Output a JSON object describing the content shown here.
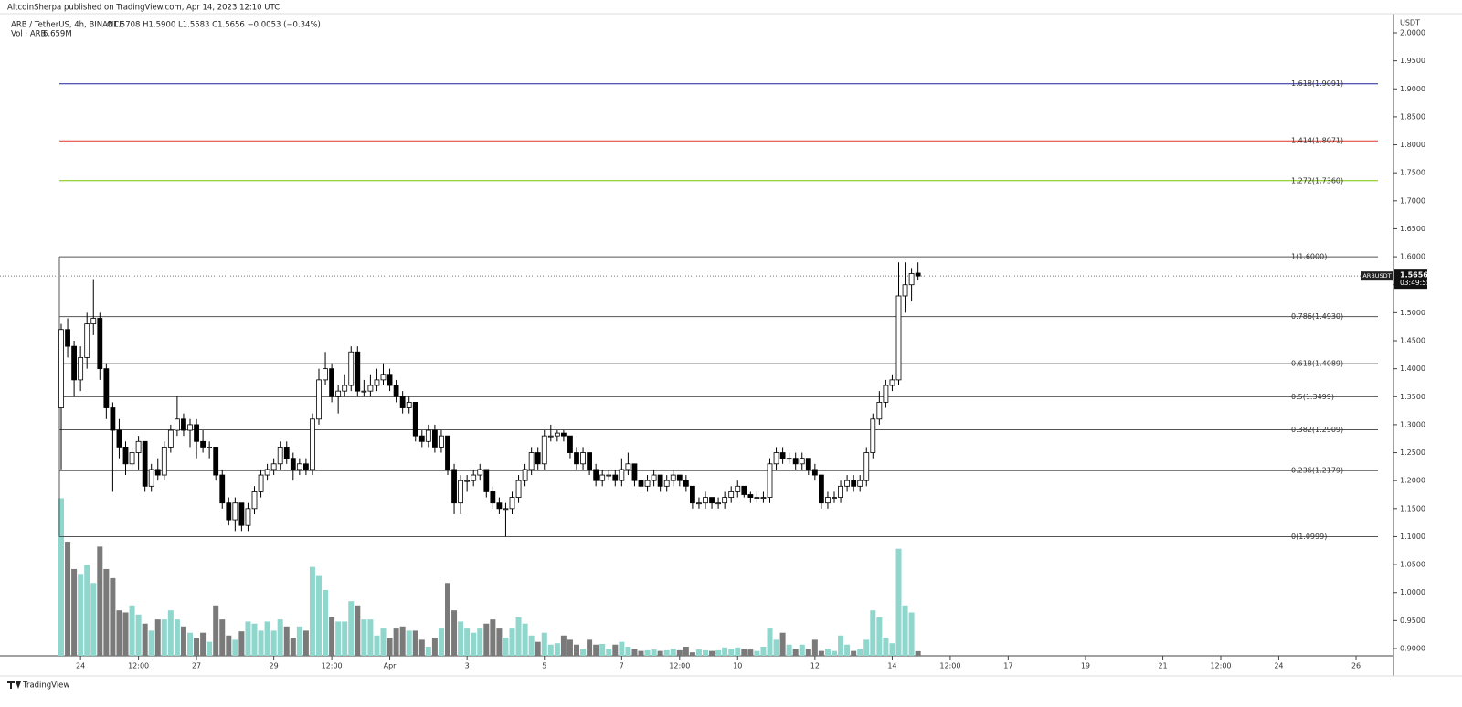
{
  "header": {
    "publisher": "AltcoinSherpa published on TradingView.com, Apr 14, 2023 12:10 UTC",
    "symbol": "ARB / TetherUS, 4h, BINANCE",
    "ohlc": "O1.5708 H1.5900 L1.5583 C1.5656 −0.0053 (−0.34%)",
    "volume_label": "Vol · ARB",
    "volume_value": "6.659M",
    "footer": "TradingView"
  },
  "chart_data": {
    "type": "candlestick",
    "currency": "USDT",
    "ylim": [
      0.9,
      2.0
    ],
    "yticks": [
      {
        "value": 0.9,
        "label": "0.9000"
      },
      {
        "value": 0.95,
        "label": "0.9500"
      },
      {
        "value": 1.0,
        "label": "1.0000"
      },
      {
        "value": 1.05,
        "label": "1.0500"
      },
      {
        "value": 1.1,
        "label": "1.1000"
      },
      {
        "value": 1.15,
        "label": "1.1500"
      },
      {
        "value": 1.2,
        "label": "1.2000"
      },
      {
        "value": 1.25,
        "label": "1.2500"
      },
      {
        "value": 1.3,
        "label": "1.3000"
      },
      {
        "value": 1.35,
        "label": "1.3500"
      },
      {
        "value": 1.4,
        "label": "1.4000"
      },
      {
        "value": 1.45,
        "label": "1.4500"
      },
      {
        "value": 1.5,
        "label": "1.5000"
      },
      {
        "value": 1.55,
        "label": "1.5500"
      },
      {
        "value": 1.6,
        "label": "1.6000"
      },
      {
        "value": 1.65,
        "label": "1.6500"
      },
      {
        "value": 1.7,
        "label": "1.7000"
      },
      {
        "value": 1.75,
        "label": "1.7500"
      },
      {
        "value": 1.8,
        "label": "1.8000"
      },
      {
        "value": 1.85,
        "label": "1.8500"
      },
      {
        "value": 1.9,
        "label": "1.9000"
      },
      {
        "value": 1.95,
        "label": "1.9500"
      },
      {
        "value": 2.0,
        "label": "2.0000"
      }
    ],
    "xticks": [
      {
        "value": 3,
        "label": "24"
      },
      {
        "value": 12,
        "label": "12:00"
      },
      {
        "value": 21,
        "label": "27"
      },
      {
        "value": 33,
        "label": "29"
      },
      {
        "value": 42,
        "label": "12:00"
      },
      {
        "value": 51,
        "label": "Apr"
      },
      {
        "value": 63,
        "label": "3"
      },
      {
        "value": 75,
        "label": "5"
      },
      {
        "value": 87,
        "label": "7"
      },
      {
        "value": 96,
        "label": "12:00"
      },
      {
        "value": 105,
        "label": "10"
      },
      {
        "value": 117,
        "label": "12"
      },
      {
        "value": 129,
        "label": "14"
      },
      {
        "value": 138,
        "label": "12:00"
      },
      {
        "value": 147,
        "label": "17"
      },
      {
        "value": 159,
        "label": "19"
      },
      {
        "value": 171,
        "label": "21"
      },
      {
        "value": 180,
        "label": "12:00"
      },
      {
        "value": 189,
        "label": "24"
      },
      {
        "value": 201,
        "label": "26"
      }
    ],
    "up_color": "#ffffff",
    "down_color": "#000000",
    "up_volume_color": "#8fd6cc",
    "down_volume_color": "#7a7a7a",
    "last_price": {
      "symbol": "ARBUSDT",
      "value": 1.5656,
      "label": "1.5656",
      "countdown": "03:49:55"
    },
    "fib_levels": [
      {
        "value": 1.0999,
        "label": "0(1.0999)",
        "color": "#555555"
      },
      {
        "value": 1.2179,
        "label": "0.236(1.2179)",
        "color": "#555555"
      },
      {
        "value": 1.2909,
        "label": "0.382(1.2909)",
        "color": "#555555"
      },
      {
        "value": 1.3499,
        "label": "0.5(1.3499)",
        "color": "#555555"
      },
      {
        "value": 1.4089,
        "label": "0.618(1.4089)",
        "color": "#555555"
      },
      {
        "value": 1.493,
        "label": "0.786(1.4930)",
        "color": "#555555"
      },
      {
        "value": 1.6,
        "label": "1(1.6000)",
        "color": "#555555"
      },
      {
        "value": 1.736,
        "label": "1.272(1.7360)",
        "color": "#7cc400"
      },
      {
        "value": 1.8071,
        "label": "1.414(1.8071)",
        "color": "#e0362c"
      },
      {
        "value": 1.9091,
        "label": "1.618(1.9091)",
        "color": "#2020a0"
      }
    ],
    "volume_ylim": [
      0,
      300
    ],
    "candles": [
      [
        1.33,
        1.48,
        1.22,
        1.47
      ],
      [
        1.47,
        1.49,
        1.42,
        1.44
      ],
      [
        1.44,
        1.45,
        1.35,
        1.38
      ],
      [
        1.38,
        1.44,
        1.36,
        1.42
      ],
      [
        1.42,
        1.5,
        1.4,
        1.48
      ],
      [
        1.48,
        1.56,
        1.46,
        1.49
      ],
      [
        1.49,
        1.5,
        1.38,
        1.4
      ],
      [
        1.4,
        1.41,
        1.31,
        1.33
      ],
      [
        1.33,
        1.34,
        1.18,
        1.29
      ],
      [
        1.29,
        1.31,
        1.24,
        1.26
      ],
      [
        1.26,
        1.27,
        1.21,
        1.23
      ],
      [
        1.23,
        1.26,
        1.22,
        1.25
      ],
      [
        1.25,
        1.28,
        1.22,
        1.27
      ],
      [
        1.27,
        1.27,
        1.18,
        1.19
      ],
      [
        1.19,
        1.23,
        1.18,
        1.22
      ],
      [
        1.22,
        1.24,
        1.2,
        1.21
      ],
      [
        1.21,
        1.27,
        1.2,
        1.26
      ],
      [
        1.26,
        1.3,
        1.25,
        1.29
      ],
      [
        1.29,
        1.35,
        1.28,
        1.31
      ],
      [
        1.31,
        1.32,
        1.28,
        1.29
      ],
      [
        1.29,
        1.31,
        1.26,
        1.3
      ],
      [
        1.3,
        1.31,
        1.24,
        1.27
      ],
      [
        1.27,
        1.29,
        1.25,
        1.26
      ],
      [
        1.26,
        1.27,
        1.24,
        1.26
      ],
      [
        1.26,
        1.26,
        1.2,
        1.21
      ],
      [
        1.21,
        1.22,
        1.15,
        1.16
      ],
      [
        1.16,
        1.17,
        1.12,
        1.13
      ],
      [
        1.13,
        1.17,
        1.11,
        1.16
      ],
      [
        1.16,
        1.16,
        1.11,
        1.12
      ],
      [
        1.12,
        1.16,
        1.11,
        1.15
      ],
      [
        1.15,
        1.19,
        1.14,
        1.18
      ],
      [
        1.18,
        1.22,
        1.17,
        1.21
      ],
      [
        1.21,
        1.23,
        1.2,
        1.22
      ],
      [
        1.22,
        1.24,
        1.21,
        1.23
      ],
      [
        1.23,
        1.27,
        1.22,
        1.26
      ],
      [
        1.26,
        1.27,
        1.23,
        1.24
      ],
      [
        1.24,
        1.25,
        1.2,
        1.22
      ],
      [
        1.22,
        1.24,
        1.21,
        1.23
      ],
      [
        1.23,
        1.24,
        1.21,
        1.22
      ],
      [
        1.22,
        1.32,
        1.21,
        1.31
      ],
      [
        1.31,
        1.4,
        1.3,
        1.38
      ],
      [
        1.38,
        1.43,
        1.37,
        1.4
      ],
      [
        1.4,
        1.41,
        1.34,
        1.35
      ],
      [
        1.35,
        1.37,
        1.32,
        1.36
      ],
      [
        1.36,
        1.39,
        1.35,
        1.37
      ],
      [
        1.37,
        1.44,
        1.36,
        1.43
      ],
      [
        1.43,
        1.44,
        1.35,
        1.36
      ],
      [
        1.36,
        1.38,
        1.35,
        1.36
      ],
      [
        1.36,
        1.39,
        1.35,
        1.37
      ],
      [
        1.37,
        1.4,
        1.36,
        1.38
      ],
      [
        1.38,
        1.41,
        1.37,
        1.39
      ],
      [
        1.39,
        1.4,
        1.36,
        1.37
      ],
      [
        1.37,
        1.38,
        1.34,
        1.35
      ],
      [
        1.35,
        1.36,
        1.32,
        1.33
      ],
      [
        1.33,
        1.35,
        1.32,
        1.34
      ],
      [
        1.34,
        1.34,
        1.27,
        1.28
      ],
      [
        1.28,
        1.29,
        1.26,
        1.27
      ],
      [
        1.27,
        1.3,
        1.26,
        1.29
      ],
      [
        1.29,
        1.3,
        1.25,
        1.26
      ],
      [
        1.26,
        1.29,
        1.25,
        1.28
      ],
      [
        1.28,
        1.28,
        1.21,
        1.22
      ],
      [
        1.22,
        1.23,
        1.14,
        1.16
      ],
      [
        1.16,
        1.21,
        1.14,
        1.2
      ],
      [
        1.2,
        1.21,
        1.18,
        1.2
      ],
      [
        1.2,
        1.22,
        1.19,
        1.21
      ],
      [
        1.21,
        1.23,
        1.2,
        1.22
      ],
      [
        1.22,
        1.22,
        1.17,
        1.18
      ],
      [
        1.18,
        1.19,
        1.15,
        1.16
      ],
      [
        1.16,
        1.17,
        1.14,
        1.15
      ],
      [
        1.15,
        1.16,
        1.1,
        1.15
      ],
      [
        1.15,
        1.18,
        1.14,
        1.17
      ],
      [
        1.17,
        1.21,
        1.16,
        1.2
      ],
      [
        1.2,
        1.23,
        1.19,
        1.22
      ],
      [
        1.22,
        1.26,
        1.21,
        1.25
      ],
      [
        1.25,
        1.26,
        1.22,
        1.23
      ],
      [
        1.23,
        1.29,
        1.22,
        1.28
      ],
      [
        1.28,
        1.3,
        1.27,
        1.28
      ],
      [
        1.28,
        1.29,
        1.27,
        1.285
      ],
      [
        1.285,
        1.29,
        1.27,
        1.28
      ],
      [
        1.28,
        1.28,
        1.24,
        1.25
      ],
      [
        1.25,
        1.26,
        1.22,
        1.23
      ],
      [
        1.23,
        1.26,
        1.22,
        1.25
      ],
      [
        1.25,
        1.25,
        1.21,
        1.22
      ],
      [
        1.22,
        1.23,
        1.19,
        1.2
      ],
      [
        1.2,
        1.22,
        1.19,
        1.21
      ],
      [
        1.21,
        1.22,
        1.2,
        1.21
      ],
      [
        1.21,
        1.22,
        1.19,
        1.2
      ],
      [
        1.2,
        1.24,
        1.19,
        1.22
      ],
      [
        1.22,
        1.25,
        1.21,
        1.23
      ],
      [
        1.23,
        1.23,
        1.19,
        1.2
      ],
      [
        1.2,
        1.21,
        1.18,
        1.19
      ],
      [
        1.19,
        1.21,
        1.18,
        1.2
      ],
      [
        1.2,
        1.22,
        1.19,
        1.21
      ],
      [
        1.21,
        1.21,
        1.18,
        1.19
      ],
      [
        1.19,
        1.21,
        1.18,
        1.2
      ],
      [
        1.2,
        1.22,
        1.19,
        1.21
      ],
      [
        1.21,
        1.21,
        1.19,
        1.2
      ],
      [
        1.2,
        1.21,
        1.18,
        1.19
      ],
      [
        1.19,
        1.19,
        1.15,
        1.16
      ],
      [
        1.16,
        1.17,
        1.15,
        1.16
      ],
      [
        1.16,
        1.18,
        1.15,
        1.17
      ],
      [
        1.17,
        1.17,
        1.15,
        1.16
      ],
      [
        1.16,
        1.17,
        1.15,
        1.16
      ],
      [
        1.16,
        1.18,
        1.15,
        1.17
      ],
      [
        1.17,
        1.19,
        1.16,
        1.18
      ],
      [
        1.18,
        1.2,
        1.17,
        1.19
      ],
      [
        1.19,
        1.19,
        1.17,
        1.175
      ],
      [
        1.175,
        1.18,
        1.16,
        1.17
      ],
      [
        1.17,
        1.18,
        1.16,
        1.17
      ],
      [
        1.17,
        1.18,
        1.16,
        1.17
      ],
      [
        1.17,
        1.24,
        1.16,
        1.23
      ],
      [
        1.23,
        1.26,
        1.22,
        1.25
      ],
      [
        1.25,
        1.26,
        1.23,
        1.24
      ],
      [
        1.24,
        1.25,
        1.23,
        1.24
      ],
      [
        1.24,
        1.25,
        1.22,
        1.23
      ],
      [
        1.23,
        1.25,
        1.22,
        1.24
      ],
      [
        1.24,
        1.24,
        1.21,
        1.22
      ],
      [
        1.22,
        1.23,
        1.2,
        1.21
      ],
      [
        1.21,
        1.21,
        1.15,
        1.16
      ],
      [
        1.16,
        1.18,
        1.15,
        1.17
      ],
      [
        1.17,
        1.18,
        1.16,
        1.17
      ],
      [
        1.17,
        1.2,
        1.16,
        1.19
      ],
      [
        1.19,
        1.21,
        1.18,
        1.2
      ],
      [
        1.2,
        1.21,
        1.18,
        1.19
      ],
      [
        1.19,
        1.21,
        1.18,
        1.2
      ],
      [
        1.2,
        1.26,
        1.19,
        1.25
      ],
      [
        1.25,
        1.32,
        1.24,
        1.31
      ],
      [
        1.31,
        1.36,
        1.3,
        1.34
      ],
      [
        1.34,
        1.38,
        1.33,
        1.37
      ],
      [
        1.37,
        1.39,
        1.36,
        1.38
      ],
      [
        1.38,
        1.59,
        1.37,
        1.53
      ],
      [
        1.53,
        1.59,
        1.5,
        1.55
      ],
      [
        1.55,
        1.58,
        1.52,
        1.57
      ],
      [
        1.5708,
        1.59,
        1.5583,
        1.5656
      ]
    ],
    "volume": [
      225,
      163,
      124,
      117,
      130,
      104,
      156,
      124,
      111,
      65,
      62,
      72,
      59,
      46,
      36,
      52,
      52,
      65,
      52,
      42,
      33,
      26,
      33,
      20,
      72,
      52,
      29,
      23,
      35,
      49,
      46,
      36,
      49,
      36,
      52,
      42,
      26,
      42,
      36,
      127,
      114,
      94,
      55,
      49,
      49,
      78,
      72,
      52,
      52,
      29,
      39,
      26,
      39,
      42,
      36,
      36,
      23,
      13,
      26,
      39,
      104,
      65,
      49,
      39,
      33,
      39,
      46,
      52,
      39,
      26,
      39,
      55,
      46,
      29,
      20,
      33,
      16,
      18,
      29,
      23,
      16,
      10,
      23,
      16,
      17,
      10,
      16,
      20,
      13,
      10,
      7,
      8,
      9,
      7,
      8,
      10,
      8,
      13,
      5,
      9,
      8,
      7,
      8,
      12,
      10,
      12,
      10,
      9,
      7,
      13,
      39,
      23,
      33,
      16,
      10,
      16,
      10,
      23,
      7,
      10,
      7,
      29,
      16,
      7,
      10,
      23,
      65,
      55,
      26,
      18,
      153,
      72,
      62,
      6.659
    ]
  }
}
